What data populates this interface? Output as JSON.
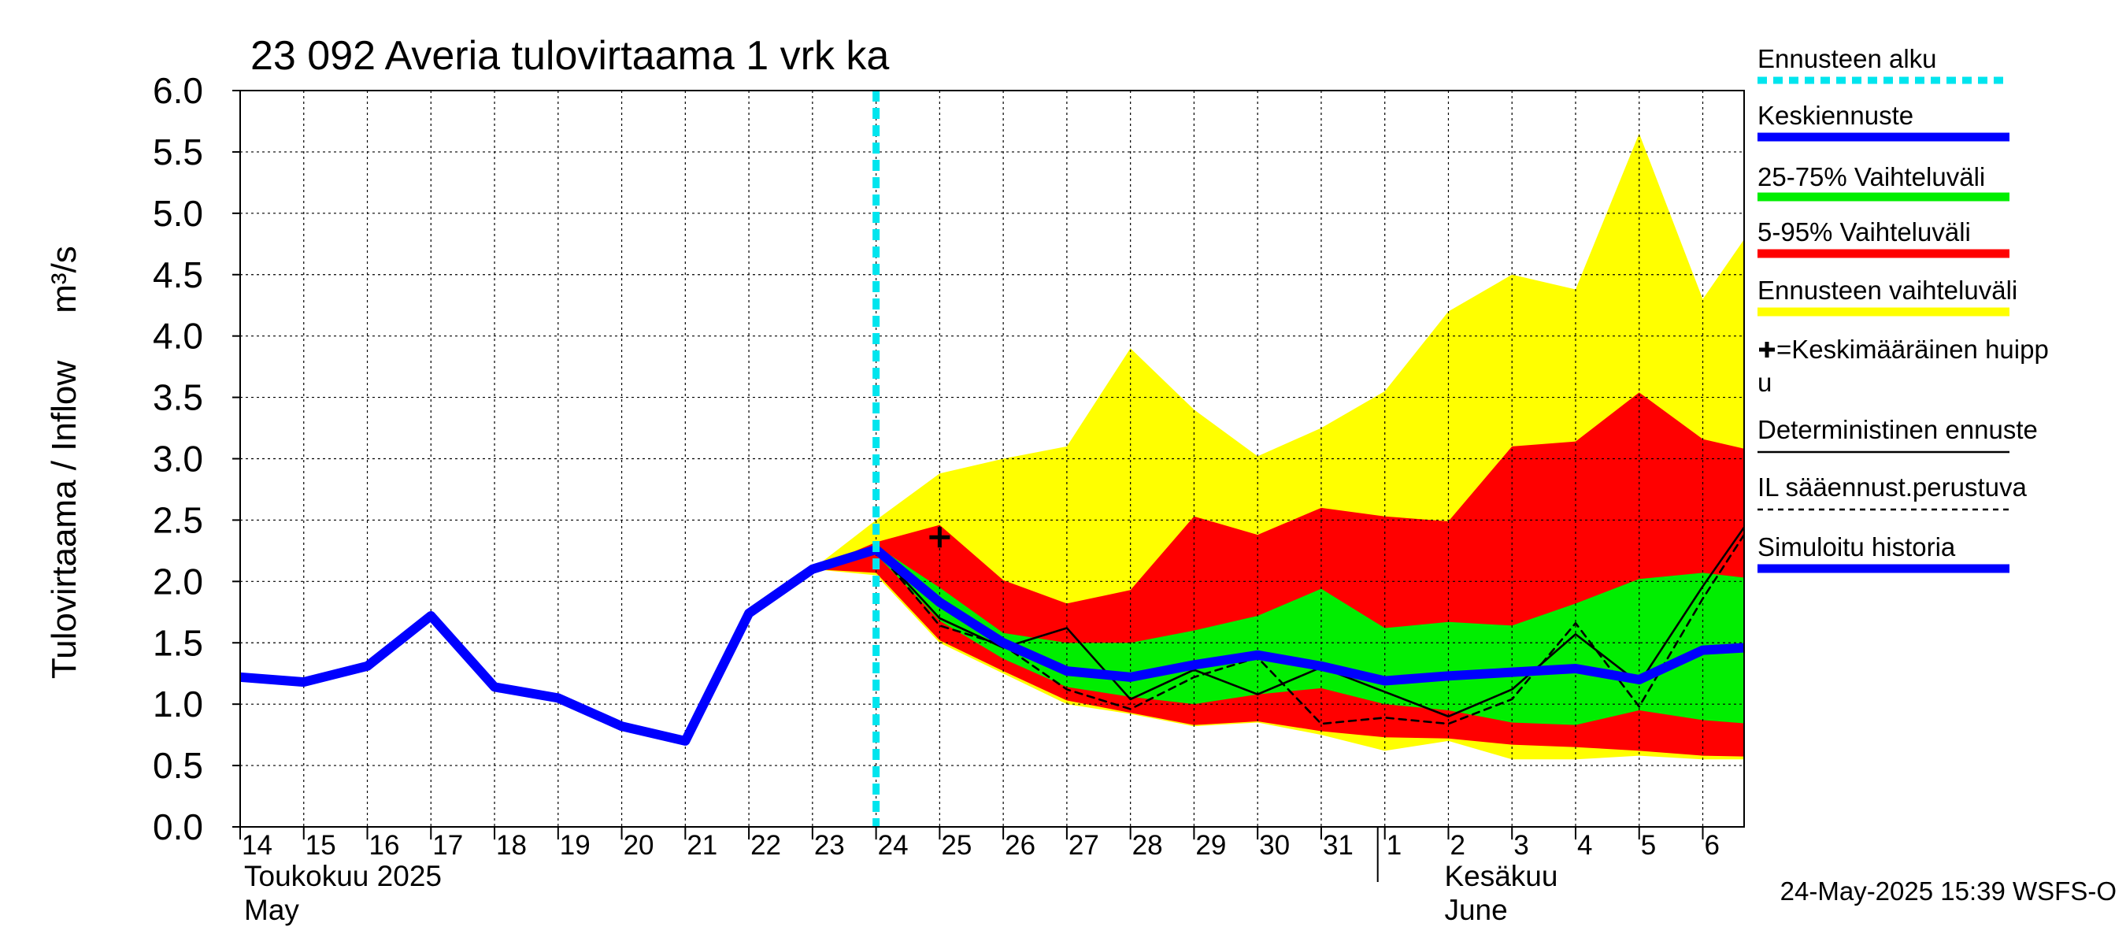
{
  "chart_data": {
    "type": "area",
    "title": "23 092 Averia tulovirtaama 1 vrk ka",
    "ylabel": "Tulovirtaama / Inflow",
    "yunit": "m³/s",
    "ylim": [
      0,
      6
    ],
    "yticks": [
      "0.0",
      "0.5",
      "1.0",
      "1.5",
      "2.0",
      "2.5",
      "3.0",
      "3.5",
      "4.0",
      "4.5",
      "5.0",
      "5.5",
      "6.0"
    ],
    "grid": true,
    "x_dates": [
      "2025-05-14",
      "2025-05-15",
      "2025-05-16",
      "2025-05-17",
      "2025-05-18",
      "2025-05-19",
      "2025-05-20",
      "2025-05-21",
      "2025-05-22",
      "2025-05-23",
      "2025-05-24",
      "2025-05-25",
      "2025-05-26",
      "2025-05-27",
      "2025-05-28",
      "2025-05-29",
      "2025-05-30",
      "2025-05-31",
      "2025-06-01",
      "2025-06-02",
      "2025-06-03",
      "2025-06-04",
      "2025-06-05",
      "2025-06-06"
    ],
    "x_tick_labels": [
      "14",
      "15",
      "16",
      "17",
      "18",
      "19",
      "20",
      "21",
      "22",
      "23",
      "24",
      "25",
      "26",
      "27",
      "28",
      "29",
      "30",
      "31",
      "1",
      "2",
      "3",
      "4",
      "5",
      "6"
    ],
    "month_labels": [
      {
        "fi": "Toukokuu  2025",
        "en": "May"
      },
      {
        "fi": "Kesäkuu",
        "en": "June"
      }
    ],
    "forecast_start": "2025-05-24",
    "series": [
      {
        "name": "Simuloitu historia",
        "color": "#0000ff",
        "x": [
          "2025-05-14",
          "2025-05-15",
          "2025-05-16",
          "2025-05-17",
          "2025-05-18",
          "2025-05-19",
          "2025-05-20",
          "2025-05-21",
          "2025-05-22",
          "2025-05-23",
          "2025-05-24"
        ],
        "y": [
          1.22,
          1.18,
          1.31,
          1.72,
          1.14,
          1.05,
          0.82,
          0.7,
          1.74,
          2.1,
          2.26
        ]
      },
      {
        "name": "Keskiennuste",
        "color": "#0000ff",
        "x": [
          "2025-05-24",
          "2025-05-25",
          "2025-05-26",
          "2025-05-27",
          "2025-05-28",
          "2025-05-29",
          "2025-05-30",
          "2025-05-31",
          "2025-06-01",
          "2025-06-02",
          "2025-06-03",
          "2025-06-04",
          "2025-06-05",
          "2025-06-06",
          "2025-06-07"
        ],
        "y": [
          2.26,
          1.83,
          1.5,
          1.27,
          1.22,
          1.32,
          1.4,
          1.31,
          1.19,
          1.23,
          1.26,
          1.29,
          1.2,
          1.44,
          1.47
        ]
      },
      {
        "name": "Deterministinen ennuste",
        "color": "#000000",
        "x": [
          "2025-05-24",
          "2025-05-25",
          "2025-05-26",
          "2025-05-27",
          "2025-05-28",
          "2025-05-29",
          "2025-05-30",
          "2025-05-31",
          "2025-06-01",
          "2025-06-02",
          "2025-06-03",
          "2025-06-04",
          "2025-06-05",
          "2025-06-06",
          "2025-06-07"
        ],
        "y": [
          2.26,
          1.7,
          1.46,
          1.62,
          1.04,
          1.28,
          1.08,
          1.3,
          1.1,
          0.9,
          1.12,
          1.57,
          1.17,
          1.96,
          2.7
        ]
      },
      {
        "name": "IL sääennust.perustuva",
        "color": "#000000",
        "dash": true,
        "x": [
          "2025-05-24",
          "2025-05-25",
          "2025-05-26",
          "2025-05-27",
          "2025-05-28",
          "2025-05-29",
          "2025-05-30",
          "2025-05-31",
          "2025-06-01",
          "2025-06-02",
          "2025-06-03",
          "2025-06-04",
          "2025-06-05",
          "2025-06-06",
          "2025-06-07"
        ],
        "y": [
          2.26,
          1.64,
          1.48,
          1.12,
          0.96,
          1.22,
          1.38,
          0.84,
          0.89,
          0.84,
          1.04,
          1.66,
          0.98,
          1.86,
          2.66
        ]
      }
    ],
    "bands": [
      {
        "name": "Ennusteen vaihteluväli",
        "color": "#ffff00",
        "x": [
          "2025-05-23",
          "2025-05-24",
          "2025-05-25",
          "2025-05-26",
          "2025-05-27",
          "2025-05-28",
          "2025-05-29",
          "2025-05-30",
          "2025-05-31",
          "2025-06-01",
          "2025-06-02",
          "2025-06-03",
          "2025-06-04",
          "2025-06-05",
          "2025-06-06",
          "2025-06-07"
        ],
        "low": [
          2.1,
          2.05,
          1.5,
          1.25,
          1.0,
          0.92,
          0.82,
          0.85,
          0.75,
          0.62,
          0.7,
          0.55,
          0.55,
          0.58,
          0.55,
          0.55
        ],
        "high": [
          2.1,
          2.5,
          2.88,
          3.0,
          3.1,
          3.9,
          3.4,
          3.02,
          3.25,
          3.55,
          4.2,
          4.5,
          4.38,
          5.65,
          4.3,
          5.05
        ]
      },
      {
        "name": "5-95% Vaihteluväli",
        "color": "#ff0000",
        "x": [
          "2025-05-23",
          "2025-05-24",
          "2025-05-25",
          "2025-05-26",
          "2025-05-27",
          "2025-05-28",
          "2025-05-29",
          "2025-05-30",
          "2025-05-31",
          "2025-06-01",
          "2025-06-02",
          "2025-06-03",
          "2025-06-04",
          "2025-06-05",
          "2025-06-06",
          "2025-06-07"
        ],
        "low": [
          2.1,
          2.07,
          1.52,
          1.27,
          1.03,
          0.93,
          0.83,
          0.86,
          0.78,
          0.73,
          0.72,
          0.67,
          0.65,
          0.62,
          0.58,
          0.57
        ],
        "high": [
          2.1,
          2.32,
          2.46,
          2.01,
          1.82,
          1.93,
          2.53,
          2.38,
          2.6,
          2.53,
          2.49,
          3.1,
          3.14,
          3.54,
          3.16,
          3.04
        ]
      },
      {
        "name": "25-75% Vaihteluväli",
        "color": "#00ee00",
        "x": [
          "2025-05-24",
          "2025-05-25",
          "2025-05-26",
          "2025-05-27",
          "2025-05-28",
          "2025-05-29",
          "2025-05-30",
          "2025-05-31",
          "2025-06-01",
          "2025-06-02",
          "2025-06-03",
          "2025-06-04",
          "2025-06-05",
          "2025-06-06",
          "2025-06-07"
        ],
        "low": [
          2.22,
          1.68,
          1.37,
          1.14,
          1.06,
          1.0,
          1.08,
          1.13,
          1.0,
          0.95,
          0.85,
          0.83,
          0.95,
          0.87,
          0.83
        ],
        "high": [
          2.29,
          1.95,
          1.58,
          1.5,
          1.5,
          1.6,
          1.72,
          1.94,
          1.62,
          1.67,
          1.64,
          1.82,
          2.02,
          2.07,
          2.01
        ]
      }
    ],
    "peak_marker": {
      "x": "2025-05-25",
      "y": 2.36,
      "label": "+=Keskimääräinen huippu"
    },
    "legend": {
      "placement": "right",
      "items": [
        {
          "label": "Ennusteen alku",
          "color": "#00e5ee",
          "style": "dotted"
        },
        {
          "label": "Keskiennuste",
          "color": "#0000ff",
          "style": "thick"
        },
        {
          "label": "25-75% Vaihteluväli",
          "color": "#00ee00",
          "style": "thick"
        },
        {
          "label": "5-95% Vaihteluväli",
          "color": "#ff0000",
          "style": "thick"
        },
        {
          "label": "Ennusteen vaihteluväli",
          "color": "#ffff00",
          "style": "thick"
        },
        {
          "label": "=Keskimääräinen huipp",
          "label2": "u",
          "color": "#000000",
          "style": "plus"
        },
        {
          "label": "Deterministinen ennuste",
          "color": "#000000",
          "style": "thin"
        },
        {
          "label": "IL sääennust.perustuva",
          "color": "#000000",
          "style": "dashed"
        },
        {
          "label": "Simuloitu historia",
          "color": "#0000ff",
          "style": "thick"
        }
      ]
    },
    "footer": "24-May-2025 15:39 WSFS-O"
  }
}
